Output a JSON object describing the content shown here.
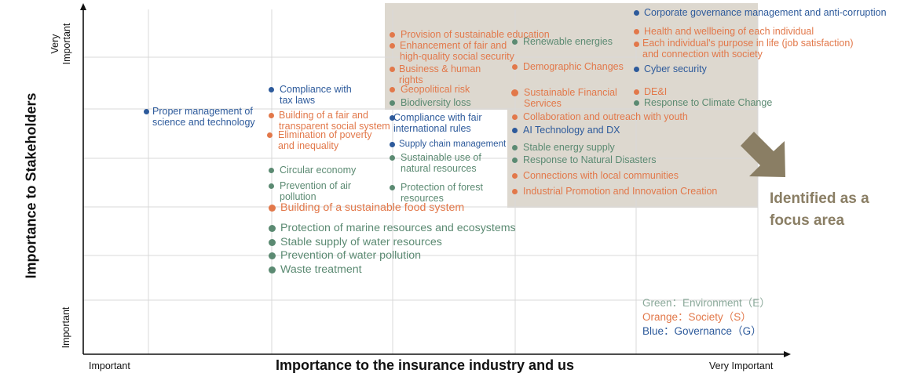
{
  "axes": {
    "x_title": "Importance to the insurance industry and us",
    "x_low": "Important",
    "x_high": "Very Important",
    "y_title": "Importance to Stakeholders",
    "y_low": "Important",
    "y_high": "Very Important"
  },
  "focus_note": "Identified as a focus area",
  "legend": {
    "environment": "Green：Environment（E）",
    "society": "Orange：Society（S）",
    "governance": "Blue：Governance（G）"
  },
  "colors": {
    "environment": "#5b8a72",
    "society": "#e2784a",
    "governance": "#2d5a9b",
    "focus_area": "#ddd8cf",
    "arrow": "#8a7e64",
    "focus_text": "#8a7e64",
    "legend_environment": "#8aa899"
  },
  "items": [
    {
      "id": "i1",
      "text": "Corporate governance management and anti-corruption",
      "cat": "governance"
    },
    {
      "id": "i2",
      "text": "Provision of sustainable education",
      "cat": "society"
    },
    {
      "id": "i3",
      "text": "Health and wellbeing of each individual",
      "cat": "society"
    },
    {
      "id": "i4",
      "text": "Enhancement of fair and\nhigh-quality social security",
      "cat": "society"
    },
    {
      "id": "i5",
      "text": "Renewable energies",
      "cat": "environment"
    },
    {
      "id": "i6",
      "text": "Each individual's purpose in life (job satisfaction)\nand connection with society",
      "cat": "society"
    },
    {
      "id": "i7",
      "text": "Demographic Changes",
      "cat": "society"
    },
    {
      "id": "i8",
      "text": "Business & human\nrights",
      "cat": "society"
    },
    {
      "id": "i9",
      "text": "Cyber security",
      "cat": "governance"
    },
    {
      "id": "i10",
      "text": "Compliance with\ntax laws",
      "cat": "governance"
    },
    {
      "id": "i11",
      "text": "Geopolitical risk",
      "cat": "society"
    },
    {
      "id": "i12",
      "text": "Sustainable Financial\nServices",
      "cat": "society"
    },
    {
      "id": "i13",
      "text": "DE&I",
      "cat": "society"
    },
    {
      "id": "i14",
      "text": "Biodiversity loss",
      "cat": "environment"
    },
    {
      "id": "i15",
      "text": "Response to Climate Change",
      "cat": "environment"
    },
    {
      "id": "i16",
      "text": "Proper management of\nscience and technology",
      "cat": "governance"
    },
    {
      "id": "i17",
      "text": "Building of a fair and\ntransparent social system",
      "cat": "society"
    },
    {
      "id": "i18",
      "text": "Compliance with fair\ninternational rules",
      "cat": "governance"
    },
    {
      "id": "i19",
      "text": "Collaboration and outreach with youth",
      "cat": "society"
    },
    {
      "id": "i20",
      "text": "AI Technology and DX",
      "cat": "governance"
    },
    {
      "id": "i21",
      "text": "Elimination of poverty\nand inequality",
      "cat": "society"
    },
    {
      "id": "i22",
      "text": "Supply chain management",
      "cat": "governance"
    },
    {
      "id": "i23",
      "text": "Stable energy supply",
      "cat": "environment"
    },
    {
      "id": "i24",
      "text": "Sustainable use of\nnatural resources",
      "cat": "environment"
    },
    {
      "id": "i25",
      "text": "Response to Natural Disasters",
      "cat": "environment"
    },
    {
      "id": "i26",
      "text": "Circular economy",
      "cat": "environment"
    },
    {
      "id": "i27",
      "text": "Connections with local communities",
      "cat": "society"
    },
    {
      "id": "i28",
      "text": "Prevention of air\npollution",
      "cat": "environment"
    },
    {
      "id": "i29",
      "text": "Protection of forest\nresources",
      "cat": "environment"
    },
    {
      "id": "i30",
      "text": "Industrial Promotion and Innovation Creation",
      "cat": "society"
    },
    {
      "id": "i31",
      "text": "Building of a sustainable food system",
      "cat": "society"
    },
    {
      "id": "i32",
      "text": "Protection of marine resources and ecosystems",
      "cat": "environment"
    },
    {
      "id": "i33",
      "text": "Stable supply of water resources",
      "cat": "environment"
    },
    {
      "id": "i34",
      "text": "Prevention of water pollution",
      "cat": "environment"
    },
    {
      "id": "i35",
      "text": "Waste treatment",
      "cat": "environment"
    }
  ]
}
